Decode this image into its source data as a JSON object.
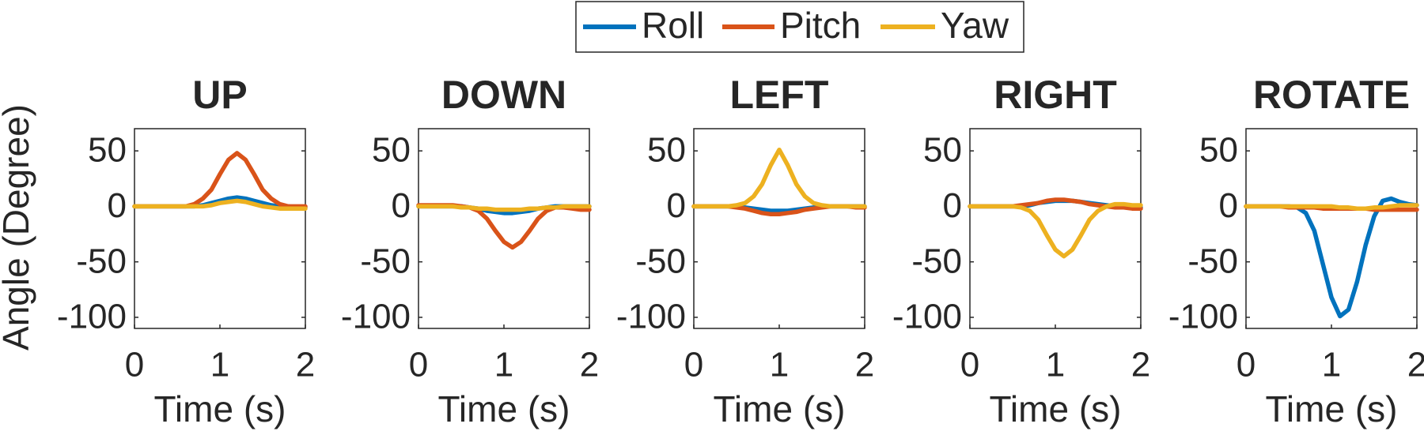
{
  "chart_data": [
    {
      "type": "line",
      "title": "UP",
      "ylabel": "Angle (Degree)",
      "xlabel": "Time (s)",
      "x": [
        0,
        0.1,
        0.2,
        0.3,
        0.4,
        0.5,
        0.6,
        0.7,
        0.8,
        0.9,
        1,
        1.1,
        1.2,
        1.3,
        1.4,
        1.5,
        1.6,
        1.7,
        1.8,
        1.9,
        2
      ],
      "xlim": [
        0,
        2
      ],
      "xticks": [
        0,
        1,
        2
      ],
      "ylim": [
        -110,
        70
      ],
      "yticks": [
        -100,
        -50,
        0,
        50
      ],
      "series": [
        {
          "name": "Roll",
          "color": "#0072BD",
          "values": [
            0,
            0,
            0,
            0,
            0,
            0,
            0,
            0,
            1,
            3,
            5,
            7,
            8,
            7,
            5,
            3,
            1,
            0,
            0,
            -1,
            -1
          ]
        },
        {
          "name": "Pitch",
          "color": "#D95319",
          "values": [
            0,
            0,
            0,
            0,
            0,
            0,
            0,
            2,
            7,
            15,
            29,
            42,
            48,
            42,
            29,
            15,
            7,
            2,
            0,
            0,
            0
          ]
        },
        {
          "name": "Yaw",
          "color": "#EDB120",
          "values": [
            0,
            0,
            0,
            0,
            0,
            0,
            0,
            0,
            0,
            1,
            3,
            4,
            5,
            4,
            2,
            0,
            -1,
            -2,
            -2,
            -2,
            -2
          ]
        }
      ]
    },
    {
      "type": "line",
      "title": "DOWN",
      "xlabel": "Time (s)",
      "x": [
        0,
        0.1,
        0.2,
        0.3,
        0.4,
        0.5,
        0.6,
        0.7,
        0.8,
        0.9,
        1,
        1.1,
        1.2,
        1.3,
        1.4,
        1.5,
        1.6,
        1.7,
        1.8,
        1.9,
        2
      ],
      "xlim": [
        0,
        2
      ],
      "xticks": [
        0,
        1,
        2
      ],
      "ylim": [
        -110,
        70
      ],
      "yticks": [
        -100,
        -50,
        0,
        50
      ],
      "series": [
        {
          "color": "#0072BD",
          "values": [
            0,
            0,
            0,
            0,
            0,
            0,
            -1,
            -2,
            -4,
            -5,
            -6,
            -6,
            -5,
            -4,
            -2,
            -1,
            0,
            0,
            0,
            0,
            0
          ]
        },
        {
          "color": "#D95319",
          "values": [
            1,
            1,
            1,
            1,
            1,
            0,
            -1,
            -4,
            -11,
            -22,
            -32,
            -37,
            -32,
            -22,
            -11,
            -4,
            -1,
            -1,
            -2,
            -3,
            -3
          ]
        },
        {
          "color": "#EDB120",
          "values": [
            0,
            0,
            0,
            0,
            0,
            -1,
            -1,
            -2,
            -2,
            -3,
            -3,
            -3,
            -3,
            -2,
            -2,
            -1,
            -1,
            0,
            0,
            0,
            0
          ]
        }
      ]
    },
    {
      "type": "line",
      "title": "LEFT",
      "xlabel": "Time (s)",
      "x": [
        0,
        0.1,
        0.2,
        0.3,
        0.4,
        0.5,
        0.6,
        0.7,
        0.8,
        0.9,
        1,
        1.1,
        1.2,
        1.3,
        1.4,
        1.5,
        1.6,
        1.7,
        1.8,
        1.9,
        2
      ],
      "xlim": [
        0,
        2
      ],
      "xticks": [
        0,
        1,
        2
      ],
      "ylim": [
        -110,
        70
      ],
      "yticks": [
        -100,
        -50,
        0,
        50
      ],
      "series": [
        {
          "color": "#0072BD",
          "values": [
            0,
            0,
            0,
            0,
            0,
            0,
            -1,
            -2,
            -3,
            -4,
            -4,
            -4,
            -3,
            -2,
            -1,
            0,
            0,
            0,
            0,
            0,
            0
          ]
        },
        {
          "color": "#D95319",
          "values": [
            0,
            0,
            0,
            0,
            0,
            -1,
            -2,
            -4,
            -6,
            -7,
            -7,
            -6,
            -5,
            -3,
            -2,
            -1,
            0,
            0,
            0,
            -1,
            -1
          ]
        },
        {
          "color": "#EDB120",
          "values": [
            0,
            0,
            0,
            0,
            0,
            1,
            3,
            9,
            20,
            37,
            51,
            37,
            20,
            9,
            3,
            1,
            0,
            0,
            0,
            0,
            0
          ]
        }
      ]
    },
    {
      "type": "line",
      "title": "RIGHT",
      "xlabel": "Time (s)",
      "x": [
        0,
        0.1,
        0.2,
        0.3,
        0.4,
        0.5,
        0.6,
        0.7,
        0.8,
        0.9,
        1,
        1.1,
        1.2,
        1.3,
        1.4,
        1.5,
        1.6,
        1.7,
        1.8,
        1.9,
        2
      ],
      "xlim": [
        0,
        2
      ],
      "xticks": [
        0,
        1,
        2
      ],
      "ylim": [
        -110,
        70
      ],
      "yticks": [
        -100,
        -50,
        0,
        50
      ],
      "series": [
        {
          "color": "#0072BD",
          "values": [
            0,
            0,
            0,
            0,
            0,
            0,
            0,
            1,
            3,
            4,
            5,
            5,
            5,
            4,
            3,
            2,
            1,
            0,
            0,
            -1,
            -1
          ]
        },
        {
          "color": "#D95319",
          "values": [
            0,
            0,
            0,
            0,
            0,
            0,
            1,
            2,
            3,
            5,
            6,
            6,
            5,
            4,
            2,
            1,
            0,
            -1,
            -1,
            -2,
            -2
          ]
        },
        {
          "color": "#EDB120",
          "values": [
            0,
            0,
            0,
            0,
            0,
            0,
            -1,
            -4,
            -12,
            -26,
            -39,
            -45,
            -39,
            -26,
            -12,
            -4,
            0,
            2,
            2,
            1,
            1
          ]
        }
      ]
    },
    {
      "type": "line",
      "title": "ROTATE",
      "xlabel": "Time (s)",
      "x": [
        0,
        0.1,
        0.2,
        0.3,
        0.4,
        0.5,
        0.6,
        0.7,
        0.8,
        0.9,
        1,
        1.1,
        1.2,
        1.3,
        1.4,
        1.5,
        1.6,
        1.7,
        1.8,
        1.9,
        2
      ],
      "xlim": [
        0,
        2
      ],
      "xticks": [
        0,
        1,
        2
      ],
      "ylim": [
        -110,
        70
      ],
      "yticks": [
        -100,
        -50,
        0,
        50
      ],
      "series": [
        {
          "color": "#0072BD",
          "values": [
            0,
            0,
            0,
            0,
            0,
            0,
            -1,
            -6,
            -22,
            -52,
            -82,
            -99,
            -93,
            -68,
            -35,
            -9,
            5,
            7,
            4,
            2,
            1
          ]
        },
        {
          "color": "#D95319",
          "values": [
            0,
            0,
            0,
            0,
            0,
            -1,
            -1,
            -1,
            -1,
            -2,
            -2,
            -2,
            -2,
            -2,
            -2,
            -3,
            -3,
            -3,
            -3,
            -3,
            -3
          ]
        },
        {
          "color": "#EDB120",
          "values": [
            0,
            0,
            0,
            0,
            0,
            0,
            0,
            0,
            0,
            0,
            0,
            -1,
            -1,
            -2,
            -2,
            -1,
            -1,
            0,
            1,
            1,
            1
          ]
        }
      ]
    }
  ]
}
